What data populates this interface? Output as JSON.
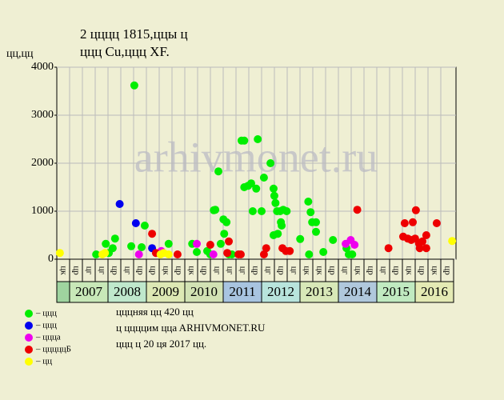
{
  "chart_data": {
    "type": "scatter",
    "title": "2 цццц 1815,ццы ц",
    "subtitle": "ццц Cu,ццц XF.",
    "y_label": "цц,цц",
    "watermark": "arhivmonet.ru",
    "ylim": [
      0,
      4000
    ],
    "yticks": [
      0,
      1000,
      2000,
      3000,
      4000
    ],
    "xlim": [
      2006.65,
      2017.0
    ],
    "grid": true,
    "quarters": [
      "цк",
      "цр",
      "цг",
      "цг",
      "цр",
      "цг",
      "цр",
      "цр",
      "цк",
      "цр",
      "цк",
      "цр",
      "цг",
      "цг",
      "цг",
      "цр",
      "цг",
      "цр",
      "цг",
      "цк",
      "цк",
      "цр",
      "цг",
      "цк",
      "цр",
      "цг",
      "цр",
      "цк",
      "цр",
      "цк",
      "цр"
    ],
    "years": [
      null,
      "2007",
      "2008",
      "2009",
      "2010",
      "2011",
      "2012",
      "2013",
      "2014",
      "2015",
      "2016"
    ],
    "series": [
      {
        "name": "– ццц",
        "color": "#00ee00",
        "x": [
          2007.67,
          2007.92,
          2008.0,
          2008.1,
          2008.16,
          2008.66,
          2008.58,
          2008.85,
          2008.93,
          2009.55,
          2010.16,
          2010.28,
          2010.55,
          2010.63,
          2010.72,
          2010.76,
          2010.84,
          2010.9,
          2010.97,
          2010.99,
          2011.05,
          2011.11,
          2011.19,
          2011.44,
          2011.51,
          2011.51,
          2011.61,
          2011.69,
          2011.73,
          2011.82,
          2011.86,
          2011.96,
          2012.02,
          2012.19,
          2012.27,
          2012.27,
          2012.29,
          2012.32,
          2012.36,
          2012.38,
          2012.44,
          2012.46,
          2012.48,
          2012.52,
          2012.61,
          2012.96,
          2013.17,
          2013.19,
          2013.23,
          2013.27,
          2013.37,
          2013.37,
          2013.56,
          2013.81,
          2014.16,
          2014.22,
          2014.31
        ],
        "values": [
          100,
          320,
          130,
          230,
          430,
          3620,
          270,
          250,
          700,
          320,
          320,
          150,
          170,
          100,
          1020,
          1030,
          1830,
          320,
          830,
          530,
          770,
          100,
          100,
          2470,
          2470,
          1500,
          1530,
          1580,
          1000,
          1470,
          2500,
          1000,
          1700,
          2000,
          500,
          1470,
          1320,
          1170,
          1000,
          530,
          1000,
          770,
          700,
          1030,
          1000,
          420,
          1200,
          100,
          980,
          770,
          770,
          570,
          150,
          400,
          230,
          100,
          100
        ]
      },
      {
        "name": "– ццц",
        "color": "#0000ee",
        "x": [
          2008.28,
          2008.7,
          2009.12
        ],
        "values": [
          1150,
          750,
          230
        ]
      },
      {
        "name": "– цццa",
        "color": "#ee00ee",
        "x": [
          2008.78,
          2009.36,
          2010.28,
          2010.71,
          2014.14,
          2014.27,
          2014.37
        ],
        "values": [
          100,
          170,
          320,
          100,
          320,
          400,
          300
        ]
      },
      {
        "name": "– цццццБ",
        "color": "#ee0000",
        "x": [
          2009.12,
          2009.22,
          2009.78,
          2010.63,
          2011.07,
          2011.11,
          2011.36,
          2011.42,
          2012.02,
          2012.08,
          2012.5,
          2012.59,
          2012.69,
          2014.44,
          2015.25,
          2015.63,
          2015.67,
          2015.75,
          2015.84,
          2015.88,
          2015.94,
          2015.96,
          2016.04,
          2016.06,
          2016.13,
          2016.23,
          2016.23,
          2016.5
        ],
        "values": [
          530,
          130,
          100,
          300,
          130,
          370,
          100,
          100,
          100,
          230,
          230,
          170,
          170,
          1030,
          230,
          470,
          750,
          430,
          400,
          770,
          430,
          1020,
          330,
          230,
          370,
          500,
          230,
          750
        ]
      },
      {
        "name": "– цц",
        "color": "#ffff00",
        "x": [
          2006.73,
          2007.83,
          2007.9,
          2009.34,
          2009.42,
          2009.55,
          2016.9
        ],
        "values": [
          130,
          100,
          130,
          100,
          130,
          100,
          380
        ]
      }
    ],
    "notes": [
      "цццняя цц 420 цц",
      "ц ццццим ццa ARHIVMONET.RU",
      "ццц ц 20 ця 2017 цц."
    ]
  }
}
